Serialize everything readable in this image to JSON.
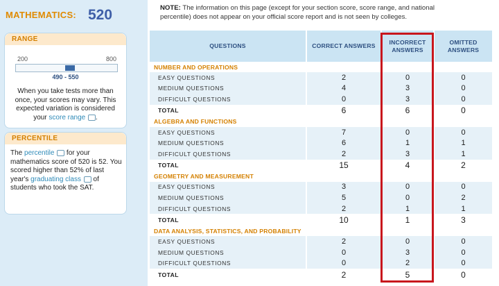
{
  "score": {
    "label": "MATHEMATICS:",
    "value": "520"
  },
  "range": {
    "heading": "RANGE",
    "min_label": "200",
    "max_label": "800",
    "scale_min": 200,
    "scale_max": 800,
    "low": 490,
    "high": 550,
    "range_label": "490 - 550",
    "text_before": "When you take tests more than once, your scores may vary. This expected variation is considered your ",
    "link": "score range",
    "text_after": "."
  },
  "percentile": {
    "heading": "PERCENTILE",
    "text1": "The ",
    "link1": "percentile",
    "text2": " for your mathematics score of 520 is 52. You scored higher than 52% of last year's ",
    "link2": "graduating class",
    "text3": " of students who took the SAT."
  },
  "note": {
    "label": "NOTE:",
    "text": " The information on this page (except for your section score, score range, and national percentile) does not appear on your official score report and is not seen by colleges."
  },
  "table": {
    "headers": {
      "questions": "QUESTIONS",
      "correct": "CORRECT ANSWERS",
      "incorrect": "INCORRECT ANSWERS",
      "omitted": "OMITTED ANSWERS"
    },
    "sections": [
      {
        "title": "NUMBER AND OPERATIONS",
        "rows": [
          {
            "label": "EASY QUESTIONS",
            "correct": "2",
            "incorrect": "0",
            "omitted": "0"
          },
          {
            "label": "MEDIUM QUESTIONS",
            "correct": "4",
            "incorrect": "3",
            "omitted": "0"
          },
          {
            "label": "DIFFICULT QUESTIONS",
            "correct": "0",
            "incorrect": "3",
            "omitted": "0"
          }
        ],
        "total": {
          "label": "TOTAL",
          "correct": "6",
          "incorrect": "6",
          "omitted": "0"
        }
      },
      {
        "title": "ALGEBRA AND FUNCTIONS",
        "rows": [
          {
            "label": "EASY QUESTIONS",
            "correct": "7",
            "incorrect": "0",
            "omitted": "0"
          },
          {
            "label": "MEDIUM QUESTIONS",
            "correct": "6",
            "incorrect": "1",
            "omitted": "1"
          },
          {
            "label": "DIFFICULT QUESTIONS",
            "correct": "2",
            "incorrect": "3",
            "omitted": "1"
          }
        ],
        "total": {
          "label": "TOTAL",
          "correct": "15",
          "incorrect": "4",
          "omitted": "2"
        }
      },
      {
        "title": "GEOMETRY AND MEASUREMENT",
        "rows": [
          {
            "label": "EASY QUESTIONS",
            "correct": "3",
            "incorrect": "0",
            "omitted": "0"
          },
          {
            "label": "MEDIUM QUESTIONS",
            "correct": "5",
            "incorrect": "0",
            "omitted": "2"
          },
          {
            "label": "DIFFICULT QUESTIONS",
            "correct": "2",
            "incorrect": "1",
            "omitted": "1"
          }
        ],
        "total": {
          "label": "TOTAL",
          "correct": "10",
          "incorrect": "1",
          "omitted": "3"
        }
      },
      {
        "title": "DATA ANALYSIS, STATISTICS, AND PROBABILITY",
        "rows": [
          {
            "label": "EASY QUESTIONS",
            "correct": "2",
            "incorrect": "0",
            "omitted": "0"
          },
          {
            "label": "MEDIUM QUESTIONS",
            "correct": "0",
            "incorrect": "3",
            "omitted": "0"
          },
          {
            "label": "DIFFICULT QUESTIONS",
            "correct": "0",
            "incorrect": "2",
            "omitted": "0"
          }
        ],
        "total": {
          "label": "TOTAL",
          "correct": "2",
          "incorrect": "5",
          "omitted": "0"
        }
      }
    ]
  },
  "colors": {
    "accent_orange": "#e08a00",
    "score_blue": "#3f5fa8",
    "highlight_red": "#c8161d",
    "link_blue": "#2e8ab8"
  },
  "icons": {
    "tooltip": "speech-bubble-icon"
  }
}
